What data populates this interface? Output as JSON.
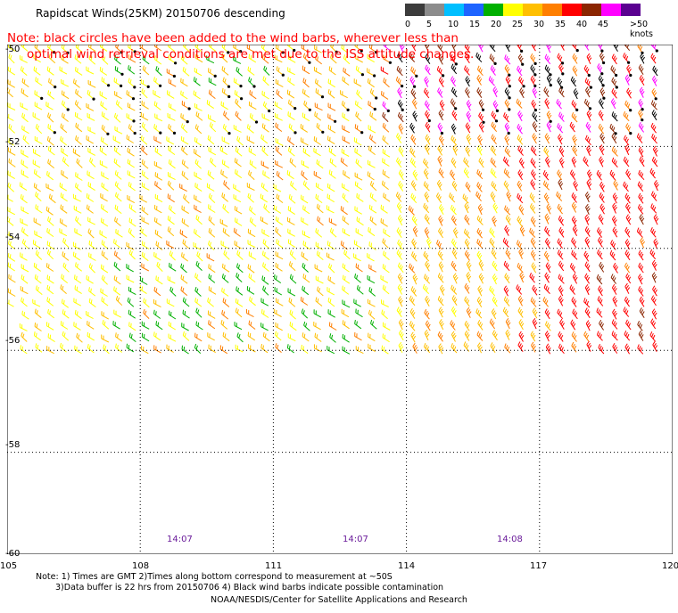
{
  "title": "Rapidscat Winds(25KM) 20150706 descending",
  "note": [
    "Note: black circles have been added to the wind barbs, wherever less than",
    "optimal wind retrieval conditions are met due to the ISS attitude changes."
  ],
  "legend": {
    "labels": [
      "0",
      "5",
      "10",
      "15",
      "20",
      "25",
      "30",
      "35",
      "40",
      "45",
      ">50 knots"
    ],
    "colors": [
      "#3c3c3c",
      "#8c8c8c",
      "#00bfff",
      "#1e64ff",
      "#00b000",
      "#ffff00",
      "#ffbf00",
      "#ff7f00",
      "#ff0000",
      "#8b2500",
      "#ff00ff",
      "#5a0090"
    ]
  },
  "map": {
    "lon_ticks": [
      "105",
      "108",
      "111",
      "114",
      "117",
      "120"
    ],
    "lat_ticks": [
      "-50",
      "-52",
      "-54",
      "-56",
      "-58",
      "-60"
    ],
    "times": [
      "14:07",
      "14:07",
      "14:08"
    ],
    "lon_range": [
      105,
      120
    ],
    "lat_range": [
      -50,
      -60
    ],
    "swath_lat_bottom": -56.1
  },
  "footer": {
    "line1": "Note: 1) Times are GMT 2)Times along bottom correspond to measurement at ~50S",
    "line2": "3)Data buffer is 22 hrs from 20150706 4) Black wind barbs indicate possible contamination",
    "line3": "NOAA/NESDIS/Center for Satellite Applications and Research"
  }
}
